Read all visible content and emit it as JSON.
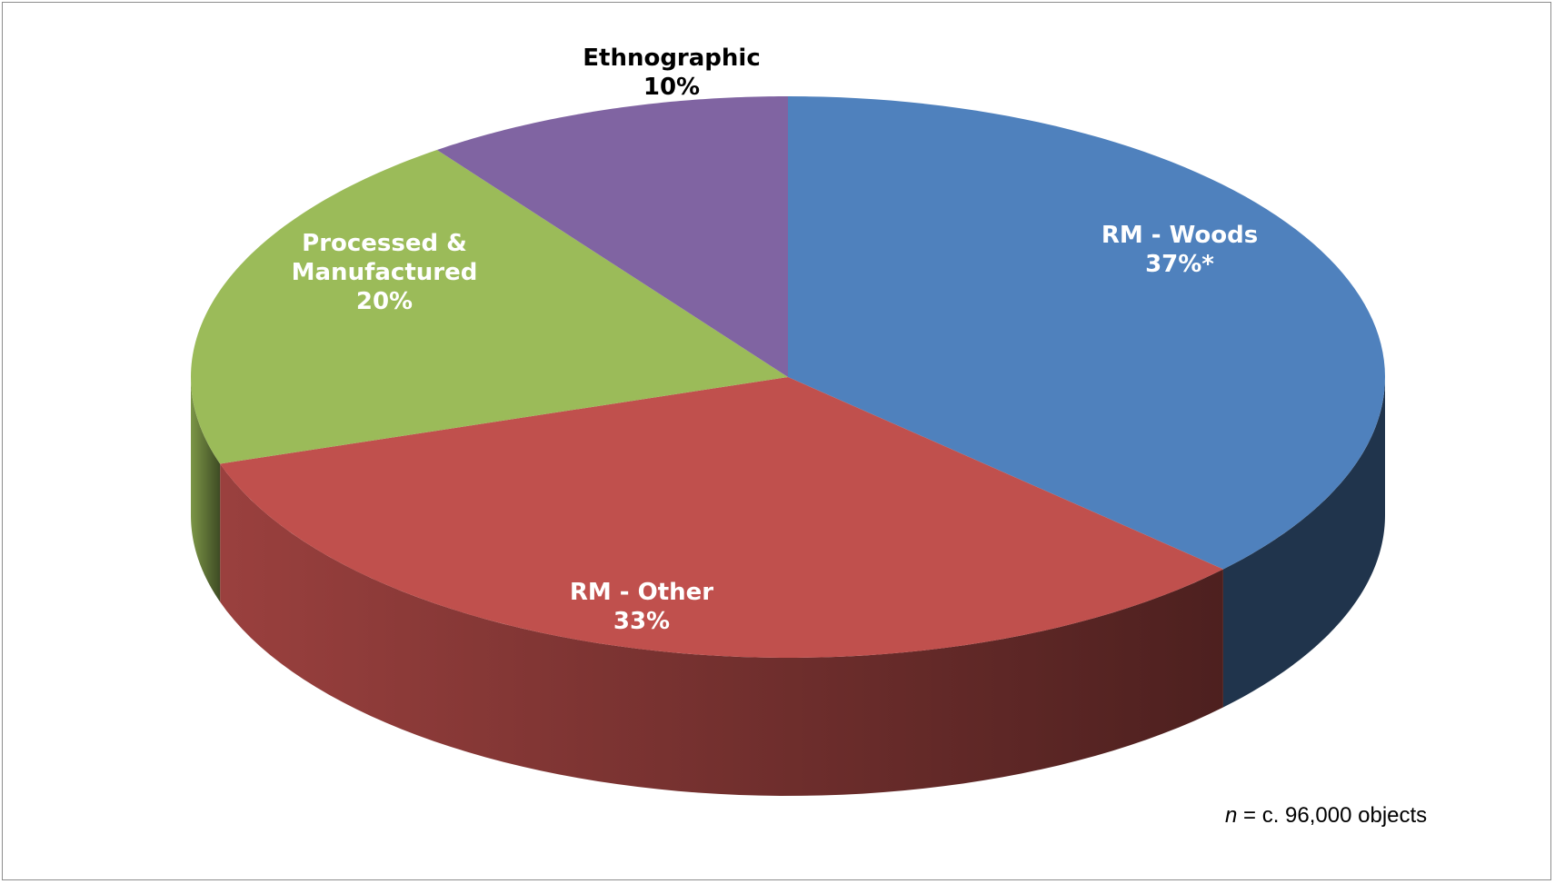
{
  "chart_data": {
    "type": "pie",
    "categories": [
      "RM - Woods",
      "RM - Other",
      "Processed & Manufactured",
      "Ethnographic"
    ],
    "values": [
      37,
      33,
      20,
      10
    ],
    "value_labels": [
      "37%*",
      "33%",
      "20%",
      "10%"
    ],
    "colors": [
      "#4f81bd",
      "#c0504d",
      "#9bbb59",
      "#8064a2"
    ],
    "annotation_var": "n",
    "annotation": "= c. 96,000 objects"
  }
}
